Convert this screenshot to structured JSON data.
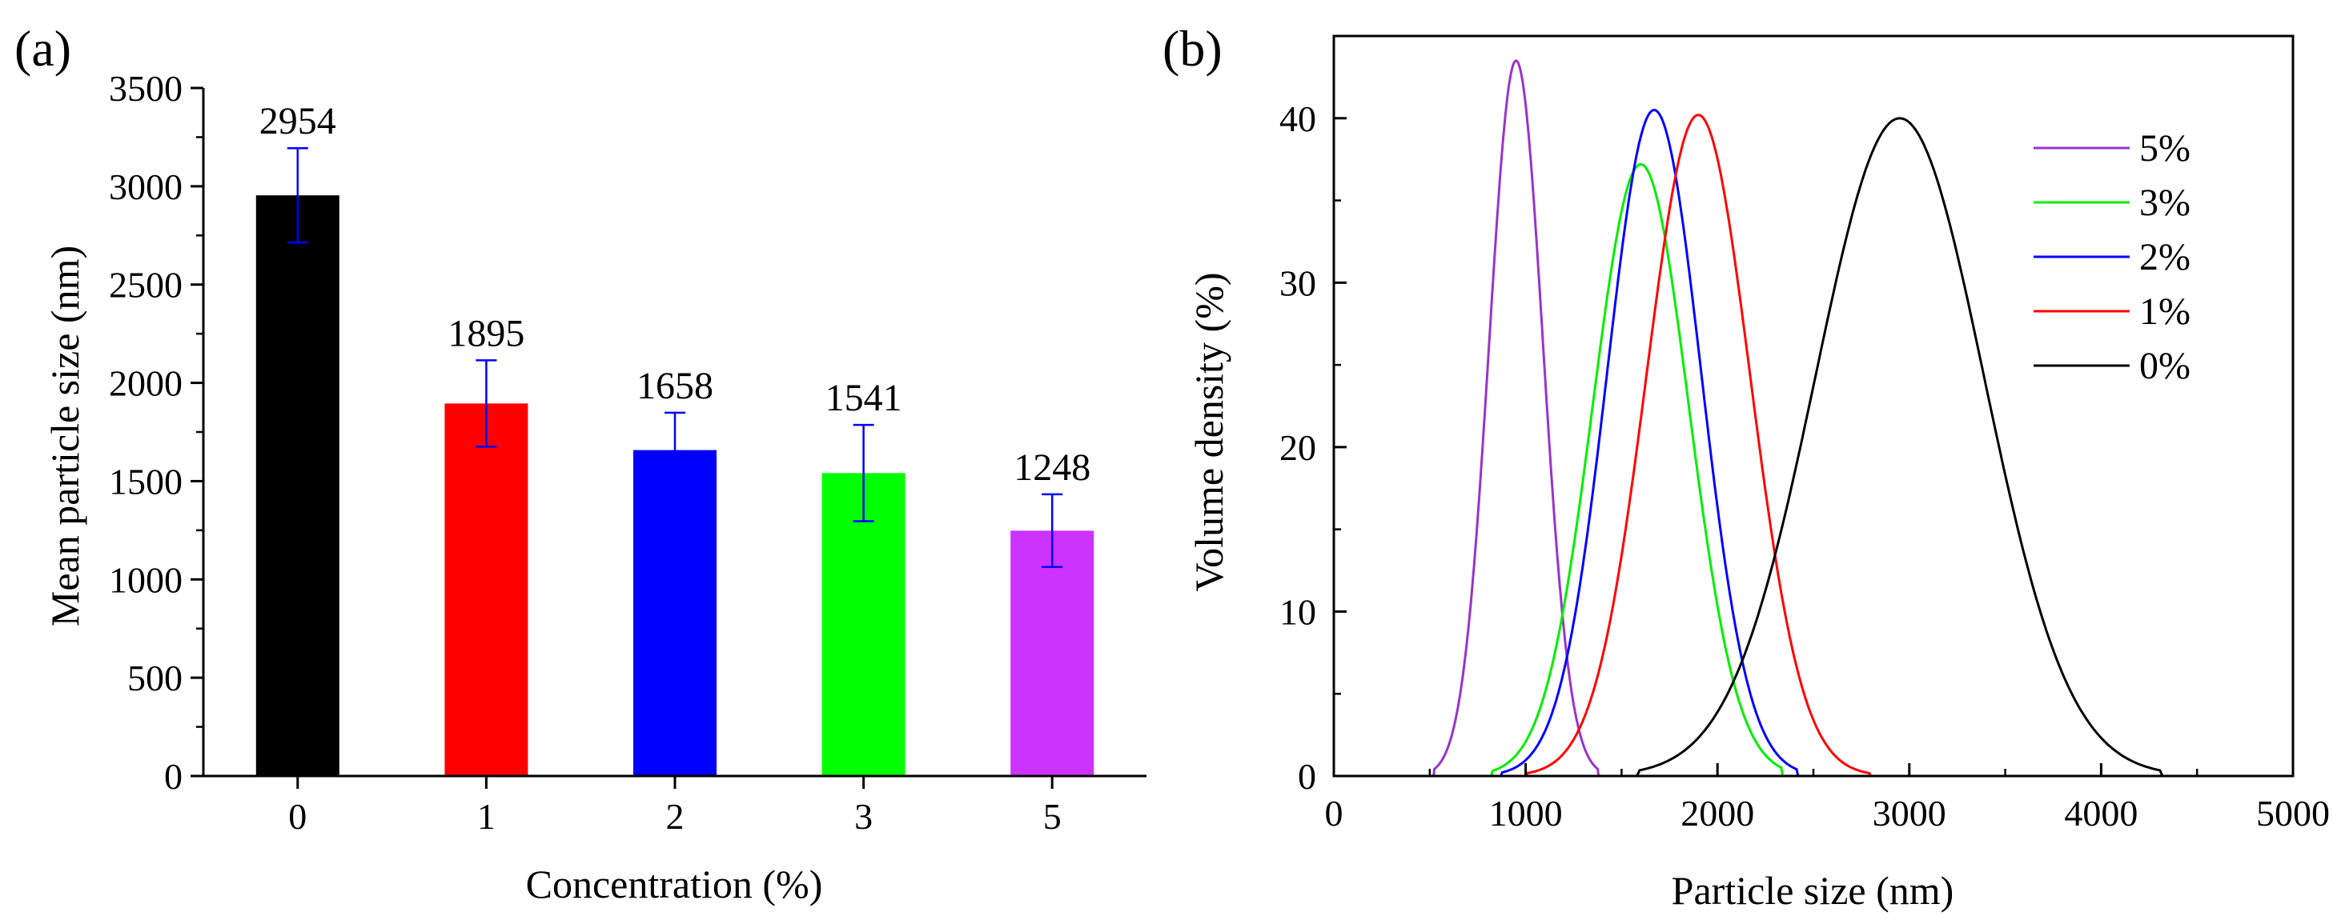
{
  "figure": {
    "panel_a_label": "(a)",
    "panel_b_label": "(b)"
  },
  "chart_data": [
    {
      "type": "bar",
      "panel": "(a)",
      "xlabel": "Concentration (%)",
      "ylabel": "Mean particle size (nm)",
      "ylim": [
        0,
        3500
      ],
      "yticks": [
        0,
        500,
        1000,
        1500,
        2000,
        2500,
        3000,
        3500
      ],
      "categories": [
        "0",
        "1",
        "2",
        "3",
        "5"
      ],
      "values": [
        2954,
        1895,
        1658,
        1541,
        1248
      ],
      "labels": [
        "2954",
        "1895",
        "1658",
        "1541",
        "1248"
      ],
      "error_bars": [
        240,
        220,
        190,
        245,
        185
      ],
      "bar_colors": [
        "#000000",
        "#ff0000",
        "#0000ff",
        "#00ff00",
        "#cc33ff"
      ],
      "error_bar_color": "#0000ff",
      "grid": false
    },
    {
      "type": "line",
      "panel": "(b)",
      "xlabel": "Particle size (nm)",
      "ylabel": "Volume density (%)",
      "xlim": [
        0,
        5000
      ],
      "ylim": [
        0,
        45
      ],
      "xticks": [
        0,
        1000,
        2000,
        3000,
        4000,
        5000
      ],
      "yticks": [
        0,
        10,
        20,
        30,
        40
      ],
      "legend_position": "top-right",
      "grid": false,
      "series": [
        {
          "name": "5%",
          "color": "#9933cc",
          "peak_x": 950,
          "peak_y": 43.5,
          "sigma": 140,
          "range": [
            520,
            1380
          ]
        },
        {
          "name": "3%",
          "color": "#00ee00",
          "peak_x": 1600,
          "peak_y": 37.2,
          "sigma": 250,
          "range": [
            820,
            2340
          ]
        },
        {
          "name": "2%",
          "color": "#0000ff",
          "peak_x": 1670,
          "peak_y": 40.5,
          "sigma": 245,
          "range": [
            870,
            2420
          ]
        },
        {
          "name": "1%",
          "color": "#ff0000",
          "peak_x": 1900,
          "peak_y": 40.2,
          "sigma": 270,
          "range": [
            1000,
            2800
          ]
        },
        {
          "name": "0%",
          "color": "#000000",
          "peak_x": 2950,
          "peak_y": 40.0,
          "sigma": 440,
          "range": [
            1580,
            4320
          ]
        }
      ]
    }
  ]
}
